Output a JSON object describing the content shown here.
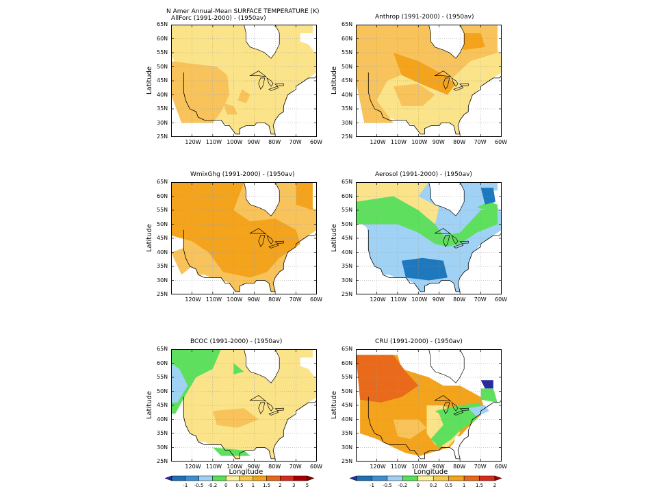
{
  "figure": {
    "header_title": "N Amer Annual-Mean SURFACE TEMPERATURE (K)"
  },
  "panels": [
    {
      "title": "AllForc (1991-2000) - (1950av)",
      "ylabel": "Latitude",
      "xlabel": ""
    },
    {
      "title": "Anthrop (1991-2000) - (1950av)",
      "ylabel": "Latitude",
      "xlabel": ""
    },
    {
      "title": "WmixGhg (1991-2000) - (1950av)",
      "ylabel": "Latitude",
      "xlabel": ""
    },
    {
      "title": "Aerosol (1991-2000) - (1950av)",
      "ylabel": "Latitude",
      "xlabel": ""
    },
    {
      "title": "BCOC (1991-2000) - (1950av)",
      "ylabel": "Latitude",
      "xlabel": "Longitude"
    },
    {
      "title": "CRU (1991-2000) - (1950av)",
      "ylabel": "Latitude",
      "xlabel": "Longitude"
    }
  ],
  "axes": {
    "lat_ticks": [
      "65N",
      "60N",
      "55N",
      "50N",
      "45N",
      "40N",
      "35N",
      "30N",
      "25N"
    ],
    "lon_ticks": [
      "120W",
      "110W",
      "100W",
      "90W",
      "80W",
      "70W",
      "60W"
    ],
    "lat_range": [
      25,
      65
    ],
    "lon_range": [
      -130,
      -60
    ]
  },
  "colorbars": [
    {
      "labels": [
        "-1",
        "-0.5",
        "-0.2",
        "0",
        "0.5",
        "1",
        "1.5",
        "2",
        "3",
        "5"
      ],
      "colors": [
        "#1f6fb4",
        "#3a8fd1",
        "#9fcff2",
        "#55e055",
        "#fff09a",
        "#f8c848",
        "#f2a31a",
        "#e8661a",
        "#d82a1a",
        "#a80000"
      ],
      "end_low": "#2b2bb0",
      "end_high": "#8b0000"
    },
    {
      "labels": [
        "-1",
        "-0.5",
        "-0.2",
        "0",
        "0.2",
        "0.5",
        "1",
        "1.5",
        "2"
      ],
      "colors": [
        "#1f6fb4",
        "#3a8fd1",
        "#9fcff2",
        "#55e055",
        "#fff09a",
        "#f8c848",
        "#f2a31a",
        "#e8661a",
        "#d82a1a"
      ],
      "end_low": "#2b2bb0",
      "end_high": "#a80000"
    }
  ],
  "colors": {
    "yellow": "#fbe38a",
    "lightorange": "#f8c35a",
    "orange": "#f3a31c",
    "darkorange": "#ea6a1b",
    "green": "#5ee05e",
    "lightblue": "#9fd2f4",
    "blue": "#1e78be",
    "navy": "#2a2aa0"
  }
}
